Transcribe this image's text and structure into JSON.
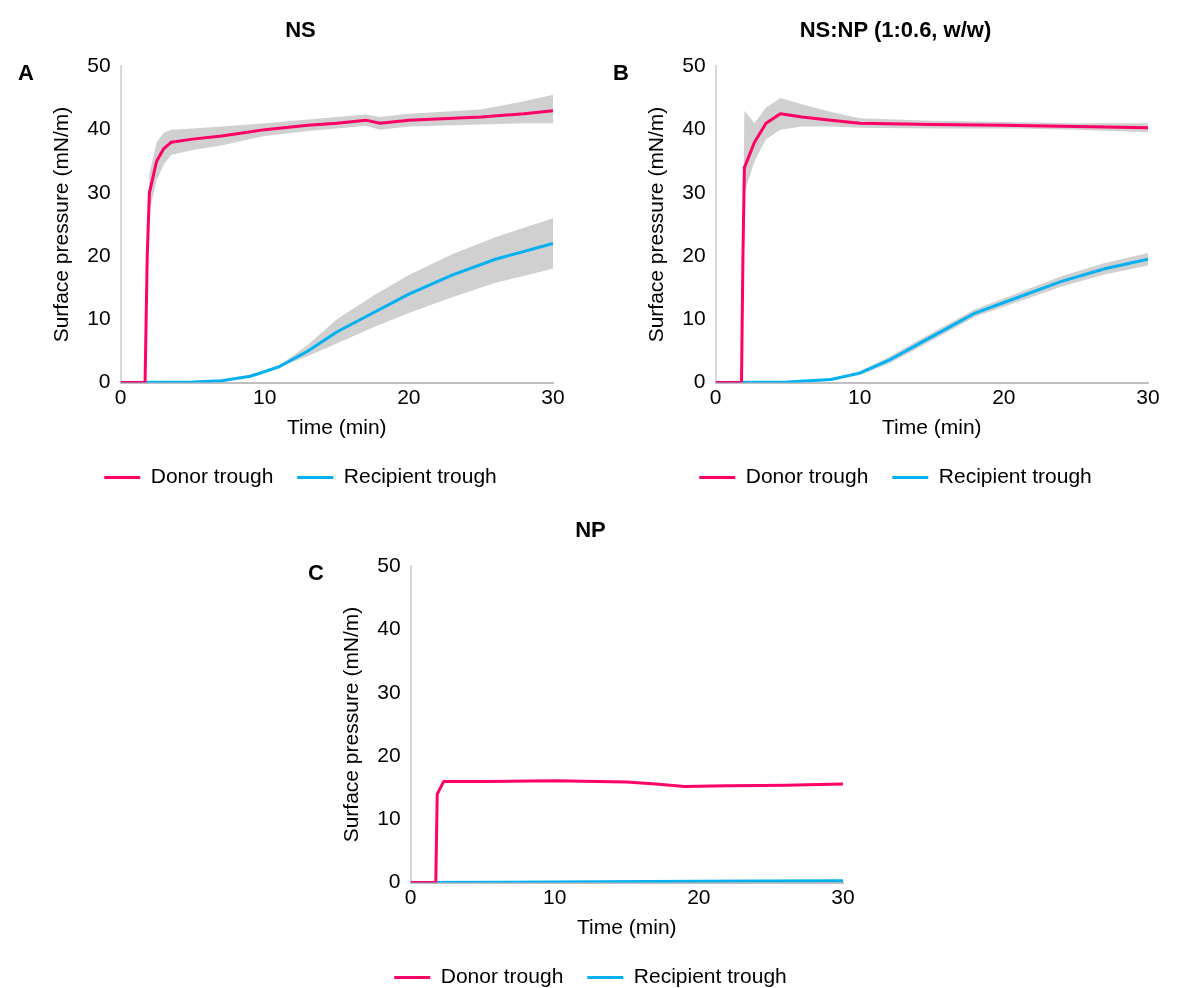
{
  "chart_data": [
    {
      "type": "line",
      "title": "NS",
      "xlabel": "Time (min)",
      "ylabel": "Surface pressure (mN/m)",
      "annotations": [
        "A"
      ],
      "xlim": [
        0,
        30
      ],
      "xticks": [
        0,
        10,
        20,
        30
      ],
      "ylim": [
        0,
        50
      ],
      "yticks": [
        0,
        10,
        20,
        30,
        40,
        50
      ],
      "grid": false,
      "legend": "bottom",
      "series": [
        {
          "name": "Donor trough",
          "color": "#ff0066",
          "x": [
            0,
            1.7,
            1.85,
            2.0,
            2.5,
            3.0,
            3.5,
            5,
            7,
            10,
            13,
            15,
            17,
            18,
            20,
            25,
            28,
            30
          ],
          "values": [
            0,
            0,
            20,
            30,
            35,
            37,
            38,
            38.5,
            39,
            40,
            40.7,
            41,
            41.5,
            41,
            41.5,
            42,
            42.5,
            43
          ],
          "lower": [
            0,
            0,
            18,
            27,
            32,
            34.5,
            36,
            36.8,
            37.5,
            39,
            39.8,
            40.2,
            40.6,
            40,
            40.5,
            40.8,
            41,
            41
          ],
          "upper": [
            0,
            0,
            22,
            33,
            38,
            39.5,
            40,
            40.2,
            40.5,
            41,
            41.6,
            42,
            42.4,
            42,
            42.5,
            43.2,
            44.5,
            45.5
          ]
        },
        {
          "name": "Recipient trough",
          "color": "#00b0f0",
          "x": [
            0,
            5,
            7,
            9,
            11,
            13,
            15,
            17.5,
            20,
            23,
            26,
            30
          ],
          "values": [
            0,
            0.1,
            0.3,
            1,
            2.5,
            5,
            8,
            11,
            14,
            17,
            19.5,
            22
          ],
          "lower": [
            0,
            0.1,
            0.3,
            1,
            2.4,
            4.2,
            6.2,
            8.7,
            11,
            13.5,
            15.8,
            18
          ],
          "upper": [
            0,
            0.1,
            0.3,
            1,
            2.7,
            6,
            10,
            13.7,
            17,
            20.3,
            23,
            26
          ]
        }
      ]
    },
    {
      "type": "line",
      "title": "NS:NP (1:0.6, w/w)",
      "xlabel": "Time (min)",
      "ylabel": "Surface pressure (mN/m)",
      "annotations": [
        "B"
      ],
      "xlim": [
        0,
        30
      ],
      "xticks": [
        0,
        10,
        20,
        30
      ],
      "ylim": [
        0,
        50
      ],
      "yticks": [
        0,
        10,
        20,
        30,
        40,
        50
      ],
      "grid": false,
      "legend": "bottom",
      "series": [
        {
          "name": "Donor trough",
          "color": "#ff0066",
          "x": [
            0,
            1.8,
            1.9,
            2.0,
            2.7,
            3.5,
            4.5,
            6,
            8,
            10,
            15,
            20,
            25,
            30
          ],
          "values": [
            0,
            0,
            20,
            34,
            38,
            41,
            42.5,
            42,
            41.5,
            41,
            40.8,
            40.7,
            40.5,
            40.3
          ],
          "lower": [
            0,
            0,
            15,
            30,
            35,
            38.5,
            40,
            40.5,
            40.5,
            40.3,
            40.2,
            40.2,
            40,
            39.6
          ],
          "upper": [
            0,
            0,
            25,
            43,
            41,
            43.5,
            45,
            44,
            42.8,
            41.8,
            41.4,
            41.2,
            41,
            41
          ]
        },
        {
          "name": "Recipient trough",
          "color": "#00b0f0",
          "x": [
            0,
            5,
            8,
            10,
            12,
            14,
            16,
            18,
            21,
            24,
            27,
            30
          ],
          "values": [
            0,
            0.1,
            0.5,
            1.5,
            3.5,
            6,
            8.5,
            11,
            13.5,
            16,
            18,
            19.5
          ],
          "lower": [
            0,
            0.1,
            0.4,
            1.2,
            3,
            5.4,
            7.9,
            10.4,
            12.8,
            15.2,
            17.1,
            18.5
          ],
          "upper": [
            0,
            0.1,
            0.6,
            1.8,
            4,
            6.6,
            9.1,
            11.6,
            14.2,
            16.8,
            18.9,
            20.5
          ]
        }
      ]
    },
    {
      "type": "line",
      "title": "NP",
      "xlabel": "Time (min)",
      "ylabel": "Surface pressure (mN/m)",
      "annotations": [
        "C"
      ],
      "xlim": [
        0,
        30
      ],
      "xticks": [
        0,
        10,
        20,
        30
      ],
      "ylim": [
        0,
        50
      ],
      "yticks": [
        0,
        10,
        20,
        30,
        40,
        50
      ],
      "grid": false,
      "legend": "bottom",
      "series": [
        {
          "name": "Donor trough",
          "color": "#ff0066",
          "x": [
            0,
            1.75,
            1.85,
            2.3,
            5,
            10,
            15,
            17,
            19,
            22,
            26,
            30
          ],
          "values": [
            0,
            0,
            14,
            16,
            16,
            16.1,
            15.9,
            15.6,
            15.2,
            15.3,
            15.4,
            15.6
          ]
        },
        {
          "name": "Recipient trough",
          "color": "#00b0f0",
          "x": [
            0,
            10,
            20,
            30
          ],
          "values": [
            0,
            0.1,
            0.2,
            0.3
          ]
        }
      ]
    }
  ]
}
